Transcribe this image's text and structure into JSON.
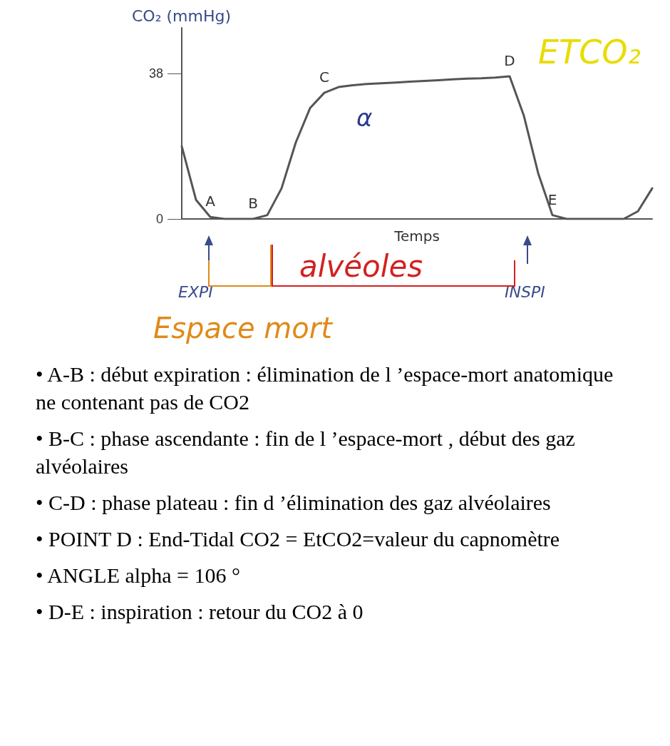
{
  "chart_data": {
    "type": "line",
    "ylabel": "CO₂ (mmHg)",
    "xlabel": "Temps",
    "categories": [
      null,
      null,
      null,
      null,
      null,
      null,
      null,
      null,
      null,
      null,
      null,
      null,
      null,
      null,
      null,
      null,
      null,
      null,
      null,
      null,
      null,
      null,
      null,
      null,
      null,
      null,
      null,
      null,
      null,
      null,
      null,
      null,
      null,
      null
    ],
    "series": [
      {
        "color": "#555555",
        "values": [
          19,
          5,
          0.5,
          0,
          0,
          0,
          1,
          8,
          20,
          29,
          33,
          34.5,
          35,
          35.3,
          35.5,
          35.7,
          35.9,
          36.1,
          36.3,
          36.5,
          36.7,
          36.8,
          37,
          37.3,
          27,
          12,
          1,
          0,
          0,
          0,
          0,
          0,
          2,
          8
        ],
        "value_labels": [
          null,
          null,
          "A",
          null,
          null,
          "B",
          null,
          null,
          null,
          null,
          "C",
          null,
          null,
          null,
          null,
          null,
          null,
          null,
          null,
          null,
          null,
          null,
          null,
          "D",
          null,
          null,
          "E",
          null,
          null,
          null,
          null,
          null,
          null,
          null
        ]
      }
    ],
    "ylim": [
      0,
      50
    ],
    "yticks": [
      0,
      38
    ],
    "grid": false,
    "marker": "none",
    "line_style": "solid",
    "annotations": [
      "α",
      "ETCO₂",
      "EXPI",
      "INSPI",
      "alvéoles",
      "Espace mort",
      "• A-B : début expiration : élimination de l ’espace-mort anatomique ne contenant pas de CO2",
      "• B-C : phase ascendante : fin de l ’espace-mort , début des gaz alvéolaires",
      "• C-D : phase plateau : fin d ’élimination des gaz alvéolaires",
      "• POINT D : End-Tidal CO2 = EtCO2=valeur du capnomètre",
      "• ANGLE  alpha = 106 °",
      "• D-E : inspiration : retour du CO2 à 0"
    ]
  }
}
